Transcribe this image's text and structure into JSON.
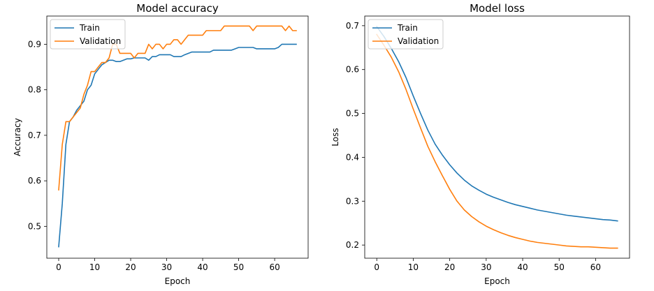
{
  "chart_data": [
    {
      "type": "line",
      "title": "Model accuracy",
      "xlabel": "Epoch",
      "ylabel": "Accuracy",
      "xlim": [
        -3.3,
        69.3
      ],
      "ylim": [
        0.43,
        0.962
      ],
      "xticks": [
        0,
        10,
        20,
        30,
        40,
        50,
        60
      ],
      "yticks": [
        0.5,
        0.6,
        0.7,
        0.8,
        0.9
      ],
      "grid": false,
      "legend": "upper left",
      "series": [
        {
          "name": "Train",
          "color": "#1f77b4",
          "x": [
            0,
            1,
            2,
            3,
            4,
            5,
            6,
            7,
            8,
            9,
            10,
            11,
            12,
            13,
            14,
            15,
            16,
            17,
            18,
            19,
            20,
            21,
            22,
            23,
            24,
            25,
            26,
            27,
            28,
            29,
            30,
            31,
            32,
            33,
            34,
            35,
            36,
            37,
            38,
            39,
            40,
            41,
            42,
            43,
            44,
            45,
            46,
            47,
            48,
            49,
            50,
            51,
            52,
            53,
            54,
            55,
            56,
            57,
            58,
            59,
            60,
            61,
            62,
            63,
            64,
            65,
            66
          ],
          "y": [
            0.455,
            0.55,
            0.68,
            0.73,
            0.74,
            0.755,
            0.765,
            0.775,
            0.8,
            0.81,
            0.835,
            0.845,
            0.855,
            0.86,
            0.865,
            0.865,
            0.862,
            0.862,
            0.865,
            0.868,
            0.868,
            0.87,
            0.87,
            0.87,
            0.87,
            0.865,
            0.873,
            0.873,
            0.877,
            0.877,
            0.877,
            0.877,
            0.873,
            0.873,
            0.873,
            0.877,
            0.88,
            0.883,
            0.883,
            0.883,
            0.883,
            0.883,
            0.883,
            0.887,
            0.887,
            0.887,
            0.887,
            0.887,
            0.887,
            0.89,
            0.893,
            0.893,
            0.893,
            0.893,
            0.893,
            0.89,
            0.89,
            0.89,
            0.89,
            0.89,
            0.89,
            0.893,
            0.9,
            0.9,
            0.9,
            0.9,
            0.9
          ]
        },
        {
          "name": "Validation",
          "color": "#ff7f0e",
          "x": [
            0,
            1,
            2,
            3,
            4,
            5,
            6,
            7,
            8,
            9,
            10,
            11,
            12,
            13,
            14,
            15,
            16,
            17,
            18,
            19,
            20,
            21,
            22,
            23,
            24,
            25,
            26,
            27,
            28,
            29,
            30,
            31,
            32,
            33,
            34,
            35,
            36,
            37,
            38,
            39,
            40,
            41,
            42,
            43,
            44,
            45,
            46,
            47,
            48,
            49,
            50,
            51,
            52,
            53,
            54,
            55,
            56,
            57,
            58,
            59,
            60,
            61,
            62,
            63,
            64,
            65,
            66
          ],
          "y": [
            0.58,
            0.68,
            0.73,
            0.73,
            0.74,
            0.75,
            0.76,
            0.79,
            0.81,
            0.84,
            0.84,
            0.85,
            0.86,
            0.86,
            0.87,
            0.9,
            0.9,
            0.88,
            0.88,
            0.88,
            0.88,
            0.87,
            0.88,
            0.88,
            0.88,
            0.9,
            0.89,
            0.9,
            0.9,
            0.89,
            0.9,
            0.9,
            0.91,
            0.91,
            0.9,
            0.91,
            0.92,
            0.92,
            0.92,
            0.92,
            0.92,
            0.93,
            0.93,
            0.93,
            0.93,
            0.93,
            0.94,
            0.94,
            0.94,
            0.94,
            0.94,
            0.94,
            0.94,
            0.94,
            0.93,
            0.94,
            0.94,
            0.94,
            0.94,
            0.94,
            0.94,
            0.94,
            0.94,
            0.93,
            0.94,
            0.93,
            0.93
          ]
        }
      ]
    },
    {
      "type": "line",
      "title": "Model loss",
      "xlabel": "Epoch",
      "ylabel": "Loss",
      "xlim": [
        -3.3,
        69.3
      ],
      "ylim": [
        0.17,
        0.722
      ],
      "xticks": [
        0,
        10,
        20,
        30,
        40,
        50,
        60
      ],
      "yticks": [
        0.2,
        0.3,
        0.4,
        0.5,
        0.6,
        0.7
      ],
      "grid": false,
      "legend": "upper left",
      "series": [
        {
          "name": "Train",
          "color": "#1f77b4",
          "x": [
            0,
            2,
            4,
            6,
            8,
            10,
            12,
            14,
            16,
            18,
            20,
            22,
            24,
            26,
            28,
            30,
            32,
            34,
            36,
            38,
            40,
            42,
            44,
            46,
            48,
            50,
            52,
            54,
            56,
            58,
            60,
            62,
            64,
            66
          ],
          "y": [
            0.698,
            0.675,
            0.648,
            0.618,
            0.582,
            0.54,
            0.5,
            0.462,
            0.43,
            0.405,
            0.383,
            0.364,
            0.348,
            0.335,
            0.325,
            0.316,
            0.309,
            0.303,
            0.297,
            0.292,
            0.288,
            0.284,
            0.28,
            0.277,
            0.274,
            0.271,
            0.268,
            0.266,
            0.264,
            0.262,
            0.26,
            0.258,
            0.257,
            0.255
          ]
        },
        {
          "name": "Validation",
          "color": "#ff7f0e",
          "x": [
            0,
            2,
            4,
            6,
            8,
            10,
            12,
            14,
            16,
            18,
            20,
            22,
            24,
            26,
            28,
            30,
            32,
            34,
            36,
            38,
            40,
            42,
            44,
            46,
            48,
            50,
            52,
            54,
            56,
            58,
            60,
            62,
            64,
            66
          ],
          "y": [
            0.68,
            0.655,
            0.628,
            0.595,
            0.555,
            0.51,
            0.467,
            0.425,
            0.39,
            0.358,
            0.327,
            0.3,
            0.28,
            0.265,
            0.253,
            0.243,
            0.235,
            0.228,
            0.222,
            0.217,
            0.213,
            0.209,
            0.206,
            0.204,
            0.202,
            0.2,
            0.198,
            0.197,
            0.196,
            0.196,
            0.195,
            0.194,
            0.193,
            0.193
          ]
        }
      ]
    }
  ]
}
